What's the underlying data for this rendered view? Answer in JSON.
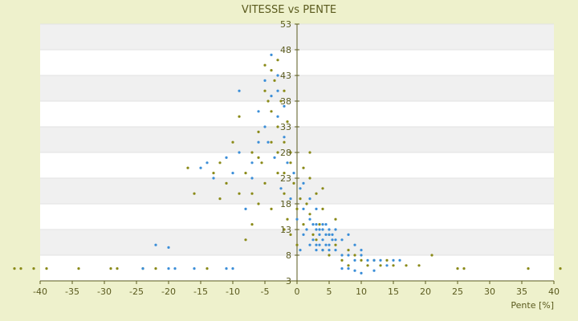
{
  "chart_data": {
    "type": "scatter",
    "title": "VITESSE vs PENTE",
    "xlabel": "Pente [%]",
    "ylabel": "",
    "xlim": [
      -40,
      40
    ],
    "ylim": [
      3,
      53
    ],
    "x_ticks": [
      -40,
      -35,
      -30,
      -25,
      -20,
      -15,
      -10,
      -5,
      0,
      5,
      10,
      15,
      20,
      25,
      30,
      35,
      40
    ],
    "y_ticks": [
      3,
      8,
      13,
      18,
      23,
      28,
      33,
      38,
      43,
      48,
      53
    ],
    "grid": "horizontal alternating bands",
    "colors": {
      "background": "#EEF1CC",
      "plot": "#FFFFFF",
      "band": "#F0F0F0",
      "axis": "#5A5A1E",
      "series_olive": "#8A8A18",
      "series_blue": "#3B8ED8"
    },
    "series": [
      {
        "color": "#8A8A18",
        "points": [
          [
            -44,
            5.4
          ],
          [
            -43,
            5.4
          ],
          [
            -41,
            5.4
          ],
          [
            -39,
            5.4
          ],
          [
            -34,
            5.4
          ],
          [
            -29,
            5.4
          ],
          [
            -28,
            5.4
          ],
          [
            -24,
            5.4
          ],
          [
            -22,
            5.4
          ],
          [
            -14,
            5.4
          ],
          [
            -8,
            11
          ],
          [
            -7,
            14
          ],
          [
            -6,
            18
          ],
          [
            -5,
            45
          ],
          [
            -5,
            40
          ],
          [
            -4.5,
            38
          ],
          [
            -4,
            44
          ],
          [
            -4,
            36
          ],
          [
            -3.5,
            42
          ],
          [
            -3,
            46
          ],
          [
            -3,
            33
          ],
          [
            -3,
            28
          ],
          [
            -2.5,
            38
          ],
          [
            -2,
            30
          ],
          [
            -2,
            24
          ],
          [
            -2,
            20
          ],
          [
            -1.5,
            15
          ],
          [
            -1,
            26
          ],
          [
            -1,
            12
          ],
          [
            -0.5,
            22
          ],
          [
            0,
            17
          ],
          [
            0,
            10
          ],
          [
            0.5,
            19
          ],
          [
            1,
            14
          ],
          [
            1,
            25
          ],
          [
            1.5,
            18
          ],
          [
            2,
            23
          ],
          [
            2,
            16
          ],
          [
            2.5,
            12
          ],
          [
            3,
            20
          ],
          [
            3,
            11
          ],
          [
            3.5,
            14
          ],
          [
            4,
            9
          ],
          [
            4,
            17
          ],
          [
            5,
            12
          ],
          [
            5,
            8
          ],
          [
            6,
            10
          ],
          [
            6,
            15
          ],
          [
            7,
            7
          ],
          [
            8,
            9
          ],
          [
            8,
            6
          ],
          [
            9,
            8
          ],
          [
            10,
            7
          ],
          [
            11,
            6
          ],
          [
            12,
            7
          ],
          [
            13,
            6
          ],
          [
            14,
            7
          ],
          [
            15,
            6
          ],
          [
            17,
            6
          ],
          [
            19,
            6
          ],
          [
            21,
            8
          ],
          [
            25,
            5.4
          ],
          [
            26,
            5.4
          ],
          [
            36,
            5.4
          ],
          [
            41,
            5.4
          ],
          [
            -12,
            26
          ],
          [
            -11,
            22
          ],
          [
            -10,
            30
          ],
          [
            -9,
            20
          ],
          [
            -9,
            35
          ],
          [
            -8,
            24
          ],
          [
            -7,
            28
          ],
          [
            -6,
            32
          ],
          [
            -5.5,
            26
          ],
          [
            -5,
            22
          ],
          [
            -4,
            30
          ],
          [
            -3,
            24
          ],
          [
            -2,
            40
          ],
          [
            -1.5,
            34
          ],
          [
            -1,
            28
          ],
          [
            -16,
            20
          ],
          [
            -17,
            25
          ],
          [
            -13,
            24
          ],
          [
            -12,
            19
          ],
          [
            -7,
            20
          ],
          [
            -6,
            27
          ],
          [
            -4,
            17
          ],
          [
            -2,
            13
          ],
          [
            2,
            28
          ],
          [
            4,
            21
          ]
        ]
      },
      {
        "color": "#3B8ED8",
        "points": [
          [
            -24,
            5.4
          ],
          [
            -20,
            5.4
          ],
          [
            -19,
            5.4
          ],
          [
            -16,
            5.4
          ],
          [
            -11,
            5.4
          ],
          [
            -10,
            5.4
          ],
          [
            -22,
            10
          ],
          [
            -20,
            9.5
          ],
          [
            -14,
            26
          ],
          [
            -9,
            40
          ],
          [
            -8,
            17
          ],
          [
            -7,
            23
          ],
          [
            -6,
            36
          ],
          [
            -5,
            42
          ],
          [
            -4.5,
            30
          ],
          [
            -4,
            39
          ],
          [
            -3.5,
            27
          ],
          [
            -3,
            35
          ],
          [
            -2.5,
            21
          ],
          [
            -2,
            31
          ],
          [
            -1.5,
            26
          ],
          [
            -1,
            19
          ],
          [
            -0.5,
            24
          ],
          [
            0,
            15
          ],
          [
            0.5,
            21
          ],
          [
            1,
            17
          ],
          [
            1.5,
            13
          ],
          [
            2,
            15
          ],
          [
            2.5,
            14
          ],
          [
            3,
            13
          ],
          [
            3,
            14
          ],
          [
            3.5,
            12
          ],
          [
            3.5,
            13
          ],
          [
            4,
            14
          ],
          [
            4,
            13
          ],
          [
            4.5,
            12
          ],
          [
            4.5,
            14
          ],
          [
            5,
            13
          ],
          [
            5,
            12
          ],
          [
            5.5,
            12
          ],
          [
            3,
            10
          ],
          [
            3.5,
            10
          ],
          [
            4,
            11
          ],
          [
            4.5,
            10
          ],
          [
            5,
            10
          ],
          [
            5.5,
            11
          ],
          [
            2.5,
            11
          ],
          [
            2,
            10
          ],
          [
            6,
            11
          ],
          [
            3,
            9
          ],
          [
            4,
            9
          ],
          [
            5,
            9
          ],
          [
            6,
            9
          ],
          [
            7,
            8
          ],
          [
            8,
            8
          ],
          [
            9,
            7
          ],
          [
            10,
            8
          ],
          [
            11,
            7
          ],
          [
            12,
            7
          ],
          [
            13,
            7
          ],
          [
            14,
            6
          ],
          [
            15,
            7
          ],
          [
            16,
            7
          ],
          [
            9,
            5
          ],
          [
            10,
            4.5
          ],
          [
            12,
            5
          ],
          [
            7,
            5.4
          ],
          [
            8,
            5.4
          ],
          [
            -3,
            40
          ],
          [
            -2,
            37
          ],
          [
            -4,
            47
          ],
          [
            -3,
            43
          ],
          [
            -5,
            33
          ],
          [
            -6,
            30
          ],
          [
            -7,
            26
          ],
          [
            -9,
            28
          ],
          [
            -10,
            24
          ],
          [
            -11,
            27
          ],
          [
            -13,
            23
          ],
          [
            -15,
            25
          ],
          [
            1,
            22
          ],
          [
            2,
            19
          ],
          [
            3,
            17
          ],
          [
            1,
            12
          ],
          [
            0.5,
            9
          ],
          [
            6,
            13
          ],
          [
            7,
            11
          ],
          [
            8,
            12
          ],
          [
            9,
            10
          ],
          [
            10,
            9
          ]
        ]
      }
    ]
  }
}
